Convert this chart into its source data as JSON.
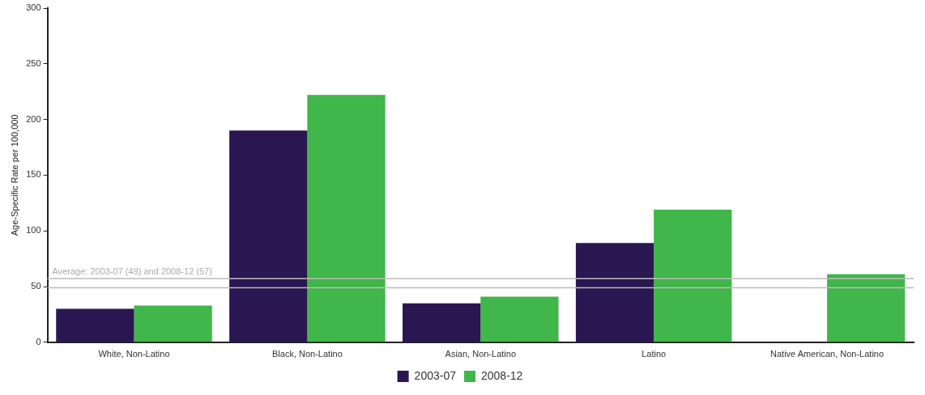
{
  "chart_data": {
    "type": "bar",
    "ylabel": "Age-Specific Rate per 100,000",
    "categories": [
      "White, Non-Latino",
      "Black, Non-Latino",
      "Asian, Non-Latino",
      "Latino",
      "Native American, Non-Latino"
    ],
    "series": [
      {
        "name": "2003-07",
        "color": "#2a1650",
        "values": [
          30,
          190,
          35,
          89,
          null
        ]
      },
      {
        "name": "2008-12",
        "color": "#41b64a",
        "values": [
          33,
          222,
          41,
          119,
          61
        ]
      }
    ],
    "ylim": [
      0,
      300
    ],
    "yticks": [
      0,
      50,
      100,
      150,
      200,
      250,
      300
    ],
    "grid": false,
    "legend": "bottom",
    "ref_lines": [
      {
        "axis": "y",
        "value": 49,
        "color": "#bbbbbb"
      },
      {
        "axis": "y",
        "value": 57,
        "color": "#bbbbbb"
      }
    ],
    "annotations": [
      "Average: 2003-07 (49) and 2008-12 (57)"
    ]
  }
}
